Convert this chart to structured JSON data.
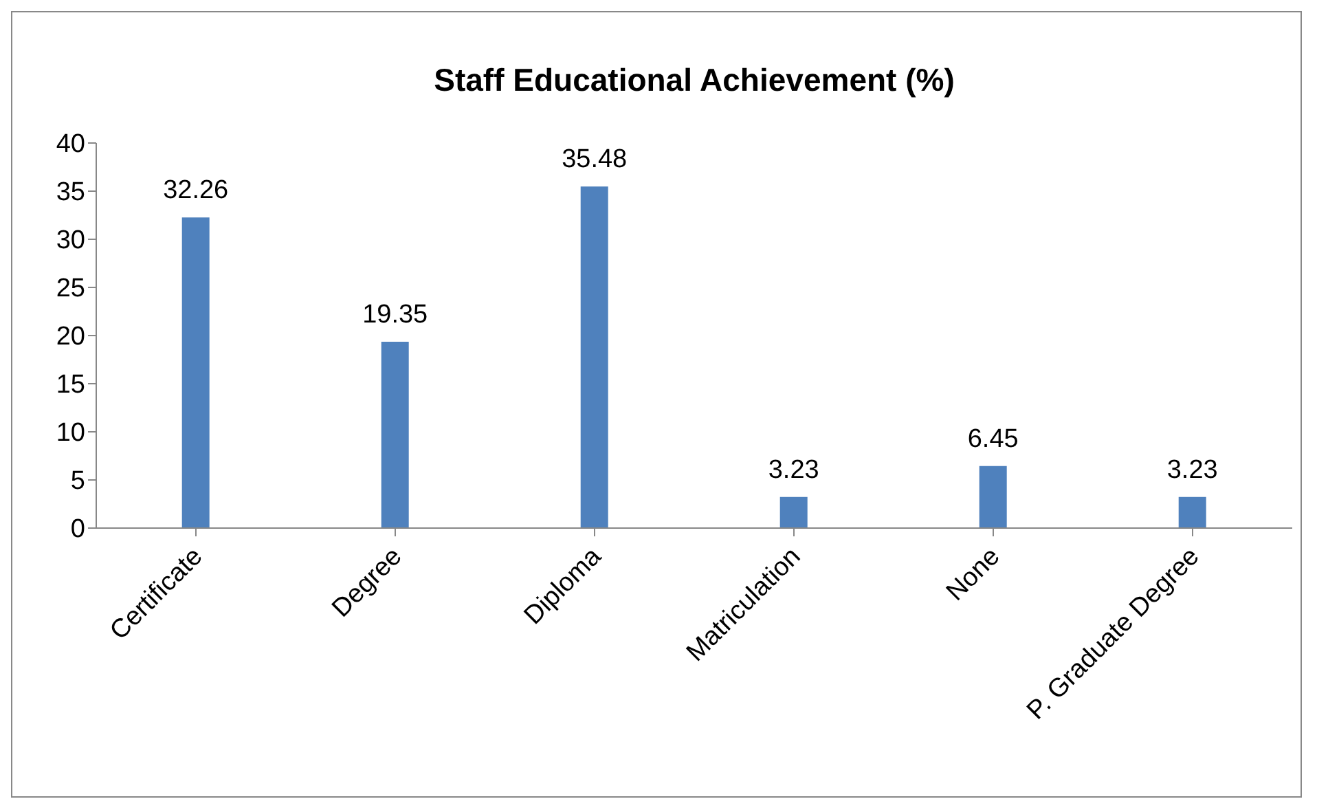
{
  "chart_data": {
    "type": "bar",
    "title": "Staff Educational Achievement (%)",
    "categories": [
      "Certificate",
      "Degree",
      "Diploma",
      "Matriculation",
      "None",
      "P. Graduate Degree"
    ],
    "values": [
      32.26,
      19.35,
      35.48,
      3.23,
      6.45,
      3.23
    ],
    "color": "#4f81bd",
    "ylim": [
      0,
      40
    ],
    "yticks": [
      0,
      5,
      10,
      15,
      20,
      25,
      30,
      35,
      40
    ],
    "grid": false,
    "data_labels": true,
    "legend": false
  }
}
